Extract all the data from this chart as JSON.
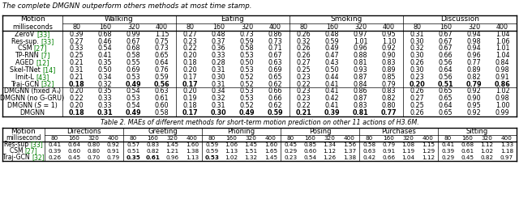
{
  "title_text": "The complete DMGNN outperform others methods at most time stamp.",
  "table2_caption": "Table 2. MAEs of different methods for short-term motion prediction on other 11 actions of H3.6M.",
  "table1": {
    "motions": [
      "Walking",
      "Eating",
      "Smoking",
      "Discussion"
    ],
    "milliseconds": [
      "80",
      "160",
      "320",
      "400"
    ],
    "methods": [
      [
        "ZeroV ",
        "[33]"
      ],
      [
        "Res-sup. ",
        "[33]"
      ],
      [
        "CSM ",
        "[27]"
      ],
      [
        "TP-RNN ",
        "[7]"
      ],
      [
        "AGED ",
        "[12]"
      ],
      [
        "Skel-TNet ",
        "[14]"
      ],
      [
        "Imit-L ",
        "[43]"
      ],
      [
        "Traj-GCN ",
        "[32]"
      ],
      [
        "DMGNN (fixed Ð",
        ")"
      ],
      [
        "DMGNN (no G-GRU)",
        ""
      ],
      [
        "DMGNN (",
        "S",
        " = 1)"
      ],
      [
        "DMGNN",
        ""
      ]
    ],
    "methods_display": [
      "ZeroV [33]",
      "Res-sup. [33]",
      "CSM [27]",
      "TP-RNN [7]",
      "AGED [12]",
      "Skel-TNet [14]",
      "Imit-L [43]",
      "Traj-GCN [32]",
      "DMGNN (fixed As)",
      "DMGNN (no G-GRU)",
      "DMGNN (S = 1)",
      "DMGNN"
    ],
    "data": [
      [
        [
          0.39,
          0.68,
          0.99,
          1.15
        ],
        [
          0.27,
          0.48,
          0.73,
          0.86
        ],
        [
          0.26,
          0.48,
          0.97,
          0.95
        ],
        [
          0.31,
          0.67,
          0.94,
          1.04
        ]
      ],
      [
        [
          0.27,
          0.46,
          0.67,
          0.75
        ],
        [
          0.23,
          0.37,
          0.59,
          0.73
        ],
        [
          0.32,
          0.59,
          1.01,
          1.1
        ],
        [
          0.3,
          0.67,
          0.98,
          1.06
        ]
      ],
      [
        [
          0.33,
          0.54,
          0.68,
          0.73
        ],
        [
          0.22,
          0.36,
          0.58,
          0.71
        ],
        [
          0.26,
          0.49,
          0.96,
          0.92
        ],
        [
          0.32,
          0.67,
          0.94,
          1.01
        ]
      ],
      [
        [
          0.25,
          0.41,
          0.58,
          0.65
        ],
        [
          0.2,
          0.33,
          0.53,
          0.67
        ],
        [
          0.26,
          0.47,
          0.88,
          0.9
        ],
        [
          0.3,
          0.66,
          0.96,
          1.04
        ]
      ],
      [
        [
          0.21,
          0.35,
          0.55,
          0.64
        ],
        [
          0.18,
          0.28,
          0.5,
          0.63
        ],
        [
          0.27,
          0.43,
          0.81,
          0.83
        ],
        [
          0.26,
          0.56,
          0.77,
          0.84
        ]
      ],
      [
        [
          0.31,
          0.5,
          0.69,
          0.76
        ],
        [
          0.2,
          0.31,
          0.53,
          0.69
        ],
        [
          0.25,
          0.5,
          0.93,
          0.89
        ],
        [
          0.3,
          0.64,
          0.89,
          0.98
        ]
      ],
      [
        [
          0.21,
          0.34,
          0.53,
          0.59
        ],
        [
          0.17,
          0.3,
          0.52,
          0.65
        ],
        [
          0.23,
          0.44,
          0.87,
          0.85
        ],
        [
          0.23,
          0.56,
          0.82,
          0.91
        ]
      ],
      [
        [
          0.18,
          0.32,
          0.49,
          0.56
        ],
        [
          0.17,
          0.31,
          0.52,
          0.62
        ],
        [
          0.22,
          0.41,
          0.84,
          0.79
        ],
        [
          0.2,
          0.51,
          0.79,
          0.86
        ]
      ],
      [
        [
          0.2,
          0.35,
          0.54,
          0.63
        ],
        [
          0.2,
          0.34,
          0.53,
          0.66
        ],
        [
          0.23,
          0.41,
          0.86,
          0.83
        ],
        [
          0.26,
          0.65,
          0.92,
          1.02
        ]
      ],
      [
        [
          0.22,
          0.33,
          0.53,
          0.61
        ],
        [
          0.19,
          0.32,
          0.53,
          0.66
        ],
        [
          0.23,
          0.42,
          0.87,
          0.82
        ],
        [
          0.27,
          0.65,
          0.9,
          0.98
        ]
      ],
      [
        [
          0.2,
          0.33,
          0.54,
          0.6
        ],
        [
          0.18,
          0.31,
          0.52,
          0.62
        ],
        [
          0.22,
          0.41,
          0.83,
          0.8
        ],
        [
          0.25,
          0.64,
          0.95,
          1.0
        ]
      ],
      [
        [
          0.18,
          0.31,
          0.49,
          0.58
        ],
        [
          0.17,
          0.3,
          0.49,
          0.59
        ],
        [
          0.21,
          0.39,
          0.81,
          0.77
        ],
        [
          0.26,
          0.65,
          0.92,
          0.99
        ]
      ]
    ],
    "bold": [
      [
        [
          0,
          0,
          0,
          0
        ],
        [
          0,
          0,
          0,
          0
        ],
        [
          0,
          0,
          0,
          0
        ],
        [
          0,
          0,
          0,
          0
        ]
      ],
      [
        [
          0,
          0,
          0,
          0
        ],
        [
          0,
          0,
          0,
          0
        ],
        [
          0,
          0,
          0,
          0
        ],
        [
          0,
          0,
          0,
          0
        ]
      ],
      [
        [
          0,
          0,
          0,
          0
        ],
        [
          0,
          0,
          0,
          0
        ],
        [
          0,
          0,
          0,
          0
        ],
        [
          0,
          0,
          0,
          0
        ]
      ],
      [
        [
          0,
          0,
          0,
          0
        ],
        [
          0,
          0,
          0,
          0
        ],
        [
          0,
          0,
          0,
          0
        ],
        [
          0,
          0,
          0,
          0
        ]
      ],
      [
        [
          0,
          0,
          0,
          0
        ],
        [
          0,
          0,
          0,
          0
        ],
        [
          0,
          0,
          0,
          0
        ],
        [
          0,
          0,
          0,
          0
        ]
      ],
      [
        [
          0,
          0,
          0,
          0
        ],
        [
          0,
          0,
          0,
          0
        ],
        [
          0,
          0,
          0,
          0
        ],
        [
          0,
          0,
          0,
          0
        ]
      ],
      [
        [
          0,
          0,
          0,
          0
        ],
        [
          0,
          0,
          0,
          0
        ],
        [
          0,
          0,
          0,
          0
        ],
        [
          0,
          0,
          0,
          0
        ]
      ],
      [
        [
          1,
          0,
          1,
          1
        ],
        [
          1,
          0,
          0,
          0
        ],
        [
          0,
          0,
          0,
          0
        ],
        [
          1,
          1,
          1,
          1
        ]
      ],
      [
        [
          0,
          0,
          0,
          0
        ],
        [
          0,
          0,
          0,
          0
        ],
        [
          0,
          0,
          0,
          0
        ],
        [
          0,
          0,
          0,
          0
        ]
      ],
      [
        [
          0,
          0,
          0,
          0
        ],
        [
          0,
          0,
          0,
          0
        ],
        [
          0,
          0,
          0,
          0
        ],
        [
          0,
          0,
          0,
          0
        ]
      ],
      [
        [
          0,
          0,
          0,
          0
        ],
        [
          0,
          0,
          0,
          0
        ],
        [
          0,
          0,
          0,
          0
        ],
        [
          0,
          0,
          0,
          0
        ]
      ],
      [
        [
          1,
          1,
          1,
          0
        ],
        [
          1,
          1,
          1,
          1
        ],
        [
          1,
          1,
          1,
          1
        ],
        [
          0,
          0,
          0,
          0
        ]
      ]
    ]
  },
  "table2": {
    "motions": [
      "Directions",
      "Greeting",
      "Phoning",
      "Posing",
      "Purchases",
      "Sitting"
    ],
    "milliseconds": [
      "80",
      "160",
      "320",
      "400"
    ],
    "methods_display": [
      "Res-sup [33]",
      "CSM [27]",
      "Traj-GCN [32]"
    ],
    "data": [
      [
        [
          0.41,
          0.64,
          0.8,
          0.92
        ],
        [
          0.57,
          0.83,
          1.45,
          1.6
        ],
        [
          0.59,
          1.06,
          1.45,
          1.6
        ],
        [
          0.45,
          0.85,
          1.34,
          1.56
        ],
        [
          0.58,
          0.79,
          1.08,
          1.15
        ],
        [
          0.41,
          0.68,
          1.12,
          1.33
        ]
      ],
      [
        [
          0.39,
          0.6,
          0.8,
          0.91
        ],
        [
          0.51,
          0.82,
          1.21,
          1.38
        ],
        [
          0.59,
          1.13,
          1.51,
          1.65
        ],
        [
          0.29,
          0.6,
          1.12,
          1.37
        ],
        [
          0.63,
          0.91,
          1.19,
          1.29
        ],
        [
          0.39,
          0.61,
          1.02,
          1.18
        ]
      ],
      [
        [
          0.26,
          0.45,
          0.7,
          0.79
        ],
        [
          0.35,
          0.61,
          0.96,
          1.13
        ],
        [
          0.53,
          1.02,
          1.32,
          1.45
        ],
        [
          0.23,
          0.54,
          1.26,
          1.38
        ],
        [
          0.42,
          0.66,
          1.04,
          1.12
        ],
        [
          0.29,
          0.45,
          0.82,
          0.97
        ]
      ]
    ],
    "bold": [
      [
        [
          0,
          0,
          0,
          0
        ],
        [
          0,
          0,
          0,
          0
        ],
        [
          0,
          0,
          0,
          0
        ],
        [
          0,
          0,
          0,
          0
        ],
        [
          0,
          0,
          0,
          0
        ],
        [
          0,
          0,
          0,
          0
        ]
      ],
      [
        [
          0,
          0,
          0,
          0
        ],
        [
          0,
          0,
          0,
          0
        ],
        [
          0,
          0,
          0,
          0
        ],
        [
          0,
          0,
          0,
          0
        ],
        [
          0,
          0,
          0,
          0
        ],
        [
          0,
          0,
          0,
          0
        ]
      ],
      [
        [
          0,
          0,
          0,
          0
        ],
        [
          1,
          1,
          0,
          0
        ],
        [
          1,
          0,
          0,
          0
        ],
        [
          0,
          0,
          0,
          0
        ],
        [
          0,
          0,
          0,
          0
        ],
        [
          0,
          0,
          0,
          0
        ]
      ]
    ]
  }
}
